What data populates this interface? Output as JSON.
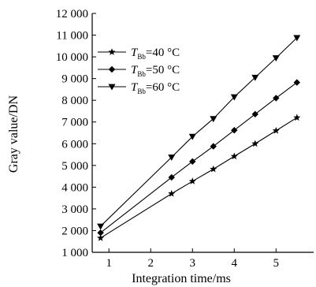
{
  "chart_data": {
    "type": "line",
    "title": "",
    "xlabel": "Integration time/ms",
    "ylabel": "Gray  value/DN",
    "xlim": [
      0.6,
      5.9
    ],
    "ylim": [
      1000,
      12000
    ],
    "x_ticks": [
      1,
      2,
      3,
      4,
      5
    ],
    "x_tick_labels": [
      "1",
      "2",
      "3",
      "4",
      "5"
    ],
    "y_ticks": [
      1000,
      2000,
      3000,
      4000,
      5000,
      6000,
      7000,
      8000,
      9000,
      10000,
      11000,
      12000
    ],
    "y_tick_labels": [
      "1 000",
      "2 000",
      "3 000",
      "4 000",
      "5 000",
      "6 000",
      "7 000",
      "8 000",
      "9 000",
      "10 000",
      "11 000",
      "12 000"
    ],
    "grid": false,
    "legend_position": "top-left",
    "x": [
      0.8,
      2.5,
      3.0,
      3.5,
      4.0,
      4.5,
      5.0,
      5.5
    ],
    "series": [
      {
        "name": "T_Bb=40 °C",
        "legend_main": "T",
        "legend_sub": "Bb",
        "legend_rest": "=40 °C",
        "marker": "star",
        "values": [
          1660,
          3700,
          4270,
          4830,
          5420,
          6000,
          6600,
          7200
        ]
      },
      {
        "name": "T_Bb=50 °C",
        "legend_main": "T",
        "legend_sub": "Bb",
        "legend_rest": "=50 °C",
        "marker": "diamond",
        "values": [
          1900,
          4450,
          5180,
          5880,
          6620,
          7360,
          8100,
          8820
        ]
      },
      {
        "name": "T_Bb=60 °C",
        "legend_main": "T",
        "legend_sub": "Bb",
        "legend_rest": "=60 °C",
        "marker": "triangle-down",
        "values": [
          2200,
          5380,
          6330,
          7150,
          8150,
          9050,
          9950,
          10880
        ]
      }
    ],
    "line_color": "#000000"
  }
}
